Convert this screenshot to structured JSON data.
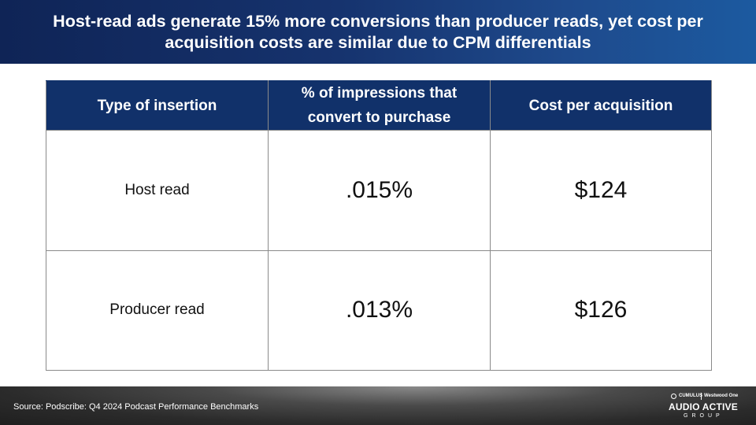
{
  "header": {
    "title": "Host-read ads generate 15% more conversions than producer reads, yet cost per acquisition costs are similar due to CPM differentials"
  },
  "table": {
    "columns": [
      "Type of insertion",
      "% of impressions that convert to purchase",
      "Cost per acquisition"
    ],
    "rows": [
      {
        "type": "Host read",
        "conversion": ".015%",
        "cpa": "$124"
      },
      {
        "type": "Producer read",
        "conversion": ".013%",
        "cpa": "$126"
      }
    ]
  },
  "footer": {
    "source": "Source: Podscribe: Q4 2024 Podcast Performance Benchmarks",
    "logo": {
      "top_left": "CUMULUS",
      "top_right": "Westwood One",
      "main": "AUDIO ACTIVE",
      "sub": "GROUP"
    }
  },
  "colors": {
    "header_bg": "#11316a",
    "title_bar_start": "#0f2456",
    "title_bar_end": "#1c5aa0",
    "footer_bg": "#2b2b2b"
  }
}
